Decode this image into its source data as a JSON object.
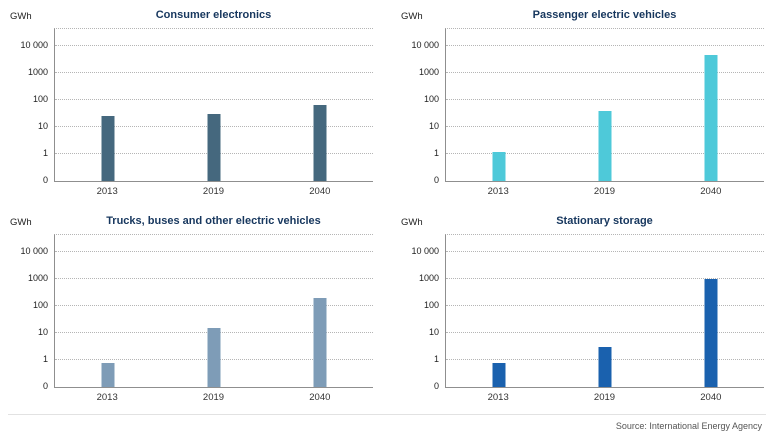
{
  "axis": {
    "unit_label": "GWh",
    "ticks": [
      {
        "label": "0",
        "level": 0
      },
      {
        "label": "1",
        "level": 1
      },
      {
        "label": "10",
        "level": 2
      },
      {
        "label": "100",
        "level": 3
      },
      {
        "label": "1000",
        "level": 4
      },
      {
        "label": "10 000",
        "level": 5
      }
    ],
    "categories": [
      "2013",
      "2019",
      "2040"
    ]
  },
  "chart_data": [
    {
      "type": "bar",
      "title": "Consumer electronics",
      "ylabel": "GWh",
      "yscale": "log",
      "ylim": [
        0,
        10000
      ],
      "categories": [
        "2013",
        "2019",
        "2040"
      ],
      "values": [
        25,
        30,
        65
      ],
      "color": "#45687e",
      "grid": true,
      "legend": "none"
    },
    {
      "type": "bar",
      "title": "Passenger electric vehicles",
      "ylabel": "GWh",
      "yscale": "log",
      "ylim": [
        0,
        10000
      ],
      "categories": [
        "2013",
        "2019",
        "2040"
      ],
      "values": [
        1.2,
        40,
        4500
      ],
      "color": "#4ec9d9",
      "grid": true,
      "legend": "none"
    },
    {
      "type": "bar",
      "title": "Trucks, buses and other electric vehicles",
      "ylabel": "GWh",
      "yscale": "log",
      "ylim": [
        0,
        10000
      ],
      "categories": [
        "2013",
        "2019",
        "2040"
      ],
      "values": [
        0.8,
        15,
        200
      ],
      "color": "#7e9cb7",
      "grid": true,
      "legend": "none"
    },
    {
      "type": "bar",
      "title": "Stationary storage",
      "ylabel": "GWh",
      "yscale": "log",
      "ylim": [
        0,
        10000
      ],
      "categories": [
        "2013",
        "2019",
        "2040"
      ],
      "values": [
        0.8,
        3,
        1000
      ],
      "color": "#1a61ae",
      "grid": true,
      "legend": "none"
    }
  ],
  "footer": {
    "source": "Source: International Energy Agency"
  }
}
